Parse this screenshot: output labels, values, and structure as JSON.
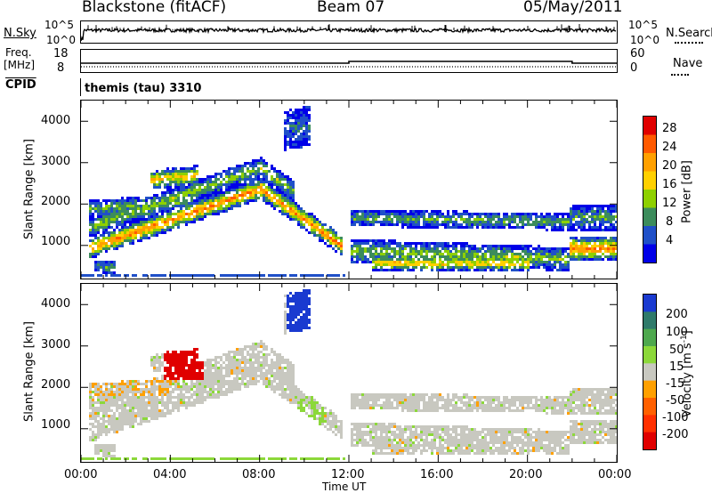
{
  "header": {
    "station": "Blackstone (fitACF)",
    "beam": "Beam 07",
    "date": "05/May/2011"
  },
  "status_panels": {
    "nsky_label": "N.Sky",
    "nsearch_label": "N.Search",
    "noise_ticks": [
      "10^5",
      "10^0"
    ],
    "freq_label_1": "Freq.",
    "freq_label_2": "[MHz]",
    "freq_ticks": [
      "18",
      "8"
    ],
    "nave_label": "Nave",
    "nave_ticks": [
      "60",
      "0"
    ],
    "cpid_label": "CPID",
    "cpid_text": "themis (tau) 3310"
  },
  "axes": {
    "ylabel": "Slant Range [km]",
    "yticks": [
      "4000",
      "3000",
      "2000",
      "1000"
    ],
    "xticks": [
      "00:00",
      "04:00",
      "08:00",
      "12:00",
      "16:00",
      "20:00",
      "00:00"
    ],
    "xlabel": "Time UT"
  },
  "power_colorbar": {
    "label": "Power [dB]",
    "ticks": [
      "28",
      "24",
      "20",
      "16",
      "12",
      "8",
      "4"
    ],
    "colors": [
      "#e00000",
      "#ff5a00",
      "#ffa000",
      "#ffd000",
      "#8ed000",
      "#3c8c5c",
      "#2050c8",
      "#0000e8"
    ]
  },
  "velocity_colorbar": {
    "label": "Velocity [m s",
    "label_sup": "-1",
    "label_end": "]",
    "ticks": [
      "200",
      "100",
      "50",
      "15",
      "-15",
      "-50",
      "-100",
      "-200"
    ],
    "colors": [
      "#1a3ad0",
      "#2f7a6a",
      "#4ea84e",
      "#8cd83a",
      "#c8c8c0",
      "#ffa000",
      "#ff6000",
      "#ff3000",
      "#e00000"
    ]
  },
  "chart_data": {
    "type": "heatmap",
    "title": "Blackstone (fitACF)   Beam 07   05/May/2011",
    "xlabel": "Time UT",
    "ylabel": "Slant Range [km]",
    "xlim_hours": [
      0,
      24
    ],
    "ylim_km": [
      200,
      4500
    ],
    "panels": [
      {
        "name": "Power [dB]",
        "scale": [
          0,
          30
        ]
      },
      {
        "name": "Velocity [m s-1]",
        "scale": [
          -200,
          200
        ]
      }
    ],
    "frequency_steps": [
      {
        "from_hour": 0,
        "to_hour": 12,
        "level": 10
      },
      {
        "from_hour": 12,
        "to_hour": 22,
        "level": 12
      },
      {
        "from_hour": 22,
        "to_hour": 24,
        "level": 10
      }
    ]
  }
}
